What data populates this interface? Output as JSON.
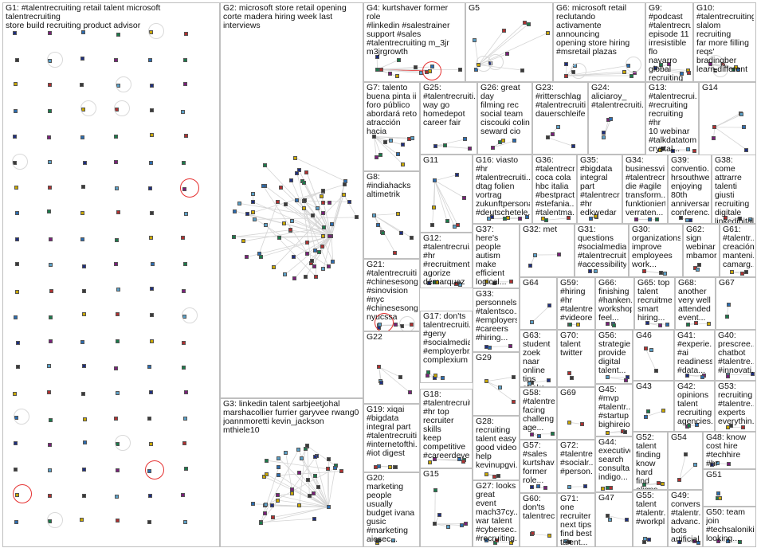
{
  "colors": {
    "border": "#bfbfbf",
    "edge": "#d5d5d5",
    "highlight": "#e53030",
    "node_palette": [
      "#1f2f80",
      "#7a1f7a",
      "#2b6cb0",
      "#1b7a4a",
      "#caa800",
      "#b03030",
      "#3a3a3a",
      "#5aa0c8"
    ]
  },
  "groups": [
    {
      "id": "G1",
      "label": "G1: #talentrecruiting retail talent microsoft talentrecruiting\nstore build recruiting product advisor",
      "nodes": 120,
      "loops": 10,
      "red_loops": 3
    },
    {
      "id": "G2",
      "label": "G2: microsoft store retail opening\ncorte madera hiring week last\ninterviews",
      "nodes": 70,
      "loops": 0,
      "red_loops": 0
    },
    {
      "id": "G3",
      "label": "G3: linkedin talent sarbjeetjohal\nmarshacollier furrier garyvee rwang0\njoannmoretti kevin_jackson mthiele10",
      "nodes": 40,
      "loops": 0,
      "red_loops": 0
    },
    {
      "id": "G4",
      "label": "G4: kurtshaver former role\n#linkedin #salestrainer\nsupport #sales\n#talentrecruiting m_3jr\nm3jrgrowth",
      "nodes": 12,
      "loops": 0,
      "red_loops": 1
    },
    {
      "id": "G5",
      "label": "G5",
      "nodes": 10,
      "loops": 2,
      "red_loops": 0
    },
    {
      "id": "G6",
      "label": "G6: microsoft retail\nreclutando\nactivamente\nannouncing\nopening store hiring\n#msretail plazas",
      "nodes": 8,
      "loops": 2,
      "red_loops": 0
    },
    {
      "id": "G7",
      "label": "G7: talento\nbuena pinta ii\nforo público\nabordará reto\natracción hacia",
      "nodes": 10,
      "loops": 0,
      "red_loops": 0
    },
    {
      "id": "G8",
      "label": "G8:\n#indiahacks\naltimetrik",
      "nodes": 8,
      "loops": 0,
      "red_loops": 0
    },
    {
      "id": "G9",
      "label": "G9: #podcast\n#talentrecruiting\nepisode 11\nirresistible flo\nnavarro global\nrecruiting talent",
      "nodes": 6,
      "loops": 0,
      "red_loops": 0
    },
    {
      "id": "G10",
      "label": "G10:\n#talentrecruiting\nslalom recruiting\nfar more filling\nreqs' bradingber\nlearn different",
      "nodes": 6,
      "loops": 2,
      "red_loops": 0
    },
    {
      "id": "G11",
      "label": "G11",
      "nodes": 8,
      "loops": 0,
      "red_loops": 0
    },
    {
      "id": "G12",
      "label": "G12:\n#talentrecrui...\n#hr\n#recruitment\nagorize\ndémarquez\nguerre\n#talents top...",
      "nodes": 6,
      "loops": 0,
      "red_loops": 0
    },
    {
      "id": "G13",
      "label": "G13:\n#talentrecrui...\n#recruiting\nrecruiting #hr\n10 webinar\n#talkdatatome\ncrystal...",
      "nodes": 5,
      "loops": 0,
      "red_loops": 0
    },
    {
      "id": "G14",
      "label": "G14",
      "nodes": 6,
      "loops": 0,
      "red_loops": 0
    },
    {
      "id": "G15",
      "label": "G15",
      "nodes": 6,
      "loops": 0,
      "red_loops": 0
    },
    {
      "id": "G16",
      "label": "G16: viasto #hr\n#talentrecruiti...\ndtag folien\nvortrag\nzukunftpersonal\n#deutschetele...",
      "nodes": 6,
      "loops": 0,
      "red_loops": 0
    },
    {
      "id": "G17",
      "label": "G17: don'ts\ntalentrecruiti...\n#geny\n#socialmedia\n#employerbr...\ncomplexium",
      "nodes": 5,
      "loops": 0,
      "red_loops": 0
    },
    {
      "id": "G18",
      "label": "G18:\n#talentrecruiti...\n#hr top\nrecruiter skills\nkeep\ncompetitive\n#careerdeve...",
      "nodes": 5,
      "loops": 0,
      "red_loops": 0
    },
    {
      "id": "G19",
      "label": "G19: xiqai\n#bigdata\nintegral part\n#talentrecruiti...\n#internetofthi...\n#iot digest",
      "nodes": 5,
      "loops": 0,
      "red_loops": 0
    },
    {
      "id": "G20",
      "label": "G20:\nmarketing\npeople usually\nbudget ivana\ngusic\n#marketing\naiesec...",
      "nodes": 5,
      "loops": 0,
      "red_loops": 0
    },
    {
      "id": "G21",
      "label": "G21:\n#talentrecruiti...\n#chinesesongs\n#sinovision\n#nyc\n#chinesesong...\nnyucssa",
      "nodes": 6,
      "loops": 1,
      "red_loops": 1
    },
    {
      "id": "G22",
      "label": "G22",
      "nodes": 5,
      "loops": 0,
      "red_loops": 0
    },
    {
      "id": "G23",
      "label": "G23:\n#ritterschlag\n#talentrecruiti...\ndauerschleife",
      "nodes": 4,
      "loops": 0,
      "red_loops": 0
    },
    {
      "id": "G24",
      "label": "G24:\naliciaroy_\n#talentrecruiti...",
      "nodes": 4,
      "loops": 0,
      "red_loops": 0
    },
    {
      "id": "G25",
      "label": "G25:\n#talentrecruiti...\nway go\nhomedepot\ncareer fair",
      "nodes": 4,
      "loops": 0,
      "red_loops": 0
    },
    {
      "id": "G26",
      "label": "G26: great day\nfilming rec\nsocial team\nciscouki colin\nseward cio",
      "nodes": 4,
      "loops": 0,
      "red_loops": 0
    },
    {
      "id": "G27",
      "label": "G27: looks\ngreat event\nmach37cy...\nwar talent\n#cybersec...\n#recruiting...",
      "nodes": 4,
      "loops": 0,
      "red_loops": 0
    },
    {
      "id": "G28",
      "label": "G28:\nrecruiting\ntalent easy\ngood video\nhelp\nkevinupgvi...",
      "nodes": 4,
      "loops": 0,
      "red_loops": 0
    },
    {
      "id": "G29",
      "label": "G29",
      "nodes": 4,
      "loops": 0,
      "red_loops": 0
    },
    {
      "id": "G30",
      "label": "G30:\norganizations\nimprove\nemployees\nwork...",
      "nodes": 3,
      "loops": 0,
      "red_loops": 0
    },
    {
      "id": "G31",
      "label": "G31:\nquestions\n#socialmedia\n#talentrecruiti...\n#accessibility...",
      "nodes": 3,
      "loops": 0,
      "red_loops": 0
    },
    {
      "id": "G32",
      "label": "G32: met",
      "nodes": 3,
      "loops": 0,
      "red_loops": 0
    },
    {
      "id": "G33",
      "label": "G33:\npersonnels...\n#talentsco...\n#employers\n#careers\n#hiring...",
      "nodes": 3,
      "loops": 0,
      "red_loops": 0
    },
    {
      "id": "G34",
      "label": "G34:\nbusinessvi...\n#talentrecr...\ndie #agile\ntransform...\nfunktioniert\nverraten...",
      "nodes": 3,
      "loops": 0,
      "red_loops": 0
    },
    {
      "id": "G35",
      "label": "G35:\n#bigdata\nintegral part\n#talentrecr...\n#hr\nedkwedar",
      "nodes": 3,
      "loops": 0,
      "red_loops": 0
    },
    {
      "id": "G36",
      "label": "G36:\n#talentrecr...\ncoca cola\nhbc italia\n#bestpract...\n#stefania...\n#talentma...",
      "nodes": 3,
      "loops": 0,
      "red_loops": 0
    },
    {
      "id": "G37",
      "label": "G37: here's\npeople\nautism\nmake\nefficient\nlogical...",
      "nodes": 3,
      "loops": 0,
      "red_loops": 0
    },
    {
      "id": "G38",
      "label": "G38: come\nattrarre\ntalenti giusti\nrecruiting\ndigitale\nlinkedinital...\nsnam...",
      "nodes": 3,
      "loops": 0,
      "red_loops": 0
    },
    {
      "id": "G39",
      "label": "G39:\nconventio...\nhrsouthwe...\nenjoying\n80th\nanniversary\nconferenc...",
      "nodes": 3,
      "loops": 0,
      "red_loops": 0
    },
    {
      "id": "G40",
      "label": "G40:\nprescree...\nchatbot\n#talentre...\n#innovati...",
      "nodes": 3,
      "loops": 0,
      "red_loops": 0
    },
    {
      "id": "G41",
      "label": "G41:\n#experie...\n#ai\nreadiness\n#data...",
      "nodes": 3,
      "loops": 0,
      "red_loops": 0
    },
    {
      "id": "G42",
      "label": "G42:\nopinions\ntalent\nrecruiting\nagencies...",
      "nodes": 3,
      "loops": 0,
      "red_loops": 0
    },
    {
      "id": "G43",
      "label": "G43",
      "nodes": 3,
      "loops": 0,
      "red_loops": 0
    },
    {
      "id": "G44",
      "label": "G44:\nexecutive\nsearch\nconsulta...\nindigo...",
      "nodes": 3,
      "loops": 0,
      "red_loops": 0
    },
    {
      "id": "G45",
      "label": "G45:\n#mvp\n#talentr...\n#startup\nbighireio...",
      "nodes": 3,
      "loops": 0,
      "red_loops": 0
    },
    {
      "id": "G46",
      "label": "G46",
      "nodes": 3,
      "loops": 0,
      "red_loops": 0
    },
    {
      "id": "G47",
      "label": "G47",
      "nodes": 3,
      "loops": 0,
      "red_loops": 0
    },
    {
      "id": "G48",
      "label": "G48: know\ncost hire\n#techhire #hr\n#talentrecrui...",
      "nodes": 3,
      "loops": 0,
      "red_loops": 0
    },
    {
      "id": "G49",
      "label": "G49:\nconvers...\n#talentr...\nadvanc...\nbots\nartificial...",
      "nodes": 3,
      "loops": 0,
      "red_loops": 0
    },
    {
      "id": "G50",
      "label": "G50: team\njoin\n#techsaloniki\nlooking...",
      "nodes": 3,
      "loops": 0,
      "red_loops": 0
    },
    {
      "id": "G51",
      "label": "G51",
      "nodes": 3,
      "loops": 0,
      "red_loops": 0
    },
    {
      "id": "G52",
      "label": "G52:\ntalent\nfinding\nknow\nhard find\naligns...",
      "nodes": 3,
      "loops": 0,
      "red_loops": 0
    },
    {
      "id": "G53",
      "label": "G53:\nrecruiting\n#talentre...\nexperts\neverythin...",
      "nodes": 3,
      "loops": 0,
      "red_loops": 0
    },
    {
      "id": "G54",
      "label": "G54",
      "nodes": 3,
      "loops": 0,
      "red_loops": 0
    },
    {
      "id": "G55",
      "label": "G55:\ntalent\n#talentr...\n#workpl...",
      "nodes": 3,
      "loops": 0,
      "red_loops": 0
    },
    {
      "id": "G56",
      "label": "G56:\nstrategies\nprovide\ndigital\ntalent...",
      "nodes": 3,
      "loops": 0,
      "red_loops": 0
    },
    {
      "id": "G57",
      "label": "G57:\n#sales\nkurtshav...\nformer\nrole...",
      "nodes": 3,
      "loops": 0,
      "red_loops": 0
    },
    {
      "id": "G58",
      "label": "G58:\n#talentre...\nfacing\nchalleng...\nage...",
      "nodes": 3,
      "loops": 0,
      "red_loops": 0
    },
    {
      "id": "G59",
      "label": "G59:\n#hiring\n#hr\n#talentre...\n#videore...",
      "nodes": 3,
      "loops": 0,
      "red_loops": 0
    },
    {
      "id": "G60",
      "label": "G60:\ndon'ts\ntalentrec...",
      "nodes": 3,
      "loops": 0,
      "red_loops": 0
    },
    {
      "id": "G61",
      "label": "G61:\n#talentr...\ncreación\nmanteni...\ncamarg...",
      "nodes": 3,
      "loops": 0,
      "red_loops": 0
    },
    {
      "id": "G62",
      "label": "G62: sign\nwebinar\nmbamor...",
      "nodes": 3,
      "loops": 0,
      "red_loops": 0
    },
    {
      "id": "G63",
      "label": "G63:\nstudent\nzoek naar\nonline tips\nstraks...",
      "nodes": 3,
      "loops": 0,
      "red_loops": 0
    },
    {
      "id": "G64",
      "label": "G64",
      "nodes": 2,
      "loops": 0,
      "red_loops": 0
    },
    {
      "id": "G65",
      "label": "G65: top\ntalent\nrecruitme...\nsmart\nhiring...",
      "nodes": 3,
      "loops": 0,
      "red_loops": 0
    },
    {
      "id": "G66",
      "label": "G66:\nfinishing\n#hanken...\nworkshop\nfeel...",
      "nodes": 3,
      "loops": 0,
      "red_loops": 0
    },
    {
      "id": "G67",
      "label": "G67",
      "nodes": 2,
      "loops": 0,
      "red_loops": 0
    },
    {
      "id": "G68",
      "label": "G68:\nanother\nvery well\nattended\nevent...",
      "nodes": 3,
      "loops": 0,
      "red_loops": 0
    },
    {
      "id": "G69",
      "label": "G69",
      "nodes": 2,
      "loops": 0,
      "red_loops": 0
    },
    {
      "id": "G70",
      "label": "G70:\ntalent\ntwitter",
      "nodes": 2,
      "loops": 0,
      "red_loops": 0
    },
    {
      "id": "G71",
      "label": "G71: one\nrecruiter\nnext tips\nfind best\ntalent...",
      "nodes": 2,
      "loops": 0,
      "red_loops": 0
    },
    {
      "id": "G72",
      "label": "G72:\n#talentre...\n#socialr...\n#person...",
      "nodes": 2,
      "loops": 0,
      "red_loops": 0
    }
  ]
}
